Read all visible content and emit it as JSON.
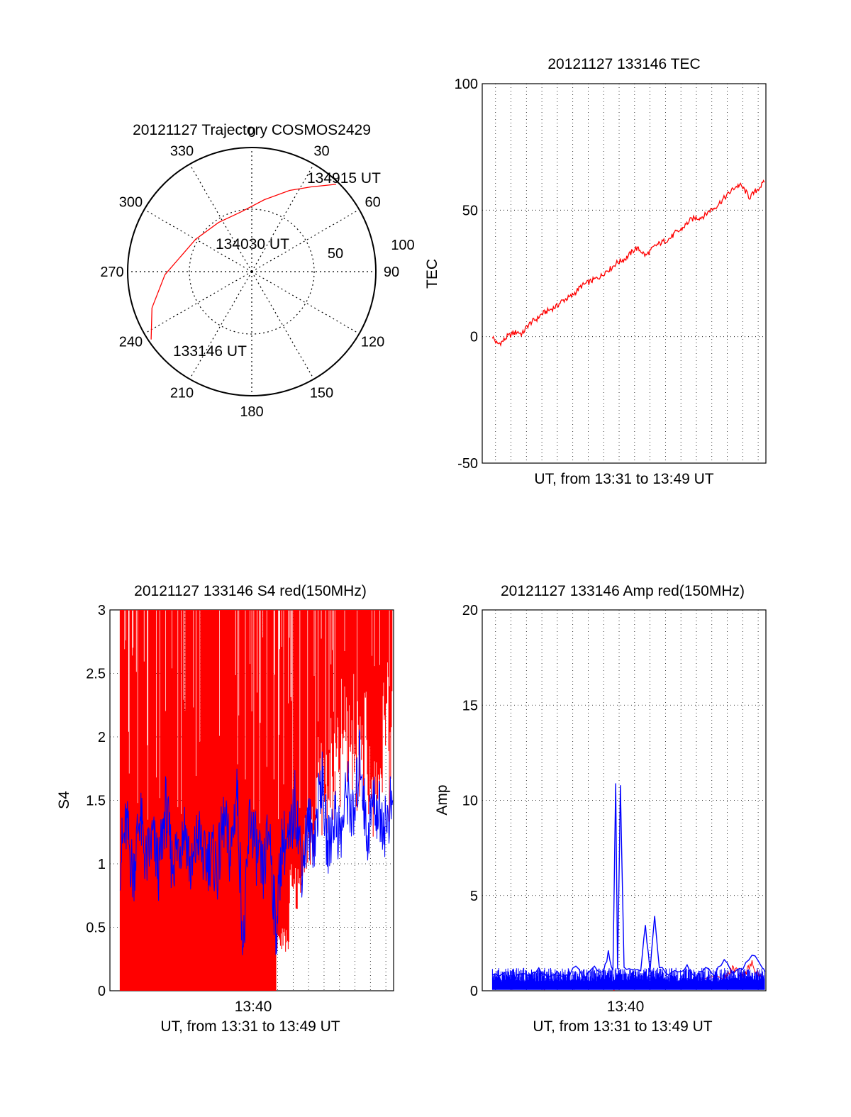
{
  "colors": {
    "red": "#ff0000",
    "blue": "#0000ff",
    "axis": "#000000",
    "grid": "#000000"
  },
  "chart_data": [
    {
      "type": "polar",
      "title": "20121127 Trajectory COSMOS2429",
      "angle_labels": [
        "0",
        "30",
        "60",
        "90",
        "120",
        "150",
        "180",
        "210",
        "240",
        "270",
        "300",
        "330"
      ],
      "radius_labels": [
        "50",
        "100"
      ],
      "trajectory": {
        "color": "red",
        "points": [
          {
            "time": "133146 UT",
            "az": 236,
            "el": 2
          },
          {
            "time": "",
            "az": 250,
            "el": 13
          },
          {
            "time": "",
            "az": 268,
            "el": 27
          },
          {
            "time": "134030 UT",
            "az": 300,
            "el": 43
          },
          {
            "time": "",
            "az": 326,
            "el": 47
          },
          {
            "time": "",
            "az": 350,
            "el": 46
          },
          {
            "time": "",
            "az": 10,
            "el": 37
          },
          {
            "time": "",
            "az": 25,
            "el": 25
          },
          {
            "time": "",
            "az": 35,
            "el": 15
          },
          {
            "time": "134915 UT",
            "az": 44,
            "el": 2
          }
        ]
      }
    },
    {
      "type": "line",
      "title": "20121127 133146 TEC",
      "xlabel": "UT, from 13:31 to 13:49 UT",
      "ylabel": "TEC",
      "xlim": [
        13.519,
        13.825
      ],
      "ylim": [
        -50,
        100
      ],
      "yticks": [
        "-50",
        "0",
        "50",
        "100"
      ],
      "grid": true,
      "series": [
        {
          "color": "red",
          "x": [
            13.53,
            13.5353,
            13.5407,
            13.546,
            13.5513,
            13.5567,
            13.562,
            13.5673,
            13.5727,
            13.578,
            13.5833,
            13.5887,
            13.594,
            13.5993,
            13.6047,
            13.61,
            13.6153,
            13.6207,
            13.626,
            13.6313,
            13.6367,
            13.642,
            13.6473,
            13.6527,
            13.658,
            13.6633,
            13.6687,
            13.674,
            13.6793,
            13.6847,
            13.69,
            13.6953,
            13.7007,
            13.706,
            13.7113,
            13.7167,
            13.722,
            13.7273,
            13.7327,
            13.738,
            13.7433,
            13.7487,
            13.754,
            13.7593,
            13.7647,
            13.77,
            13.7753,
            13.7807,
            13.786,
            13.7913,
            13.7967,
            13.802,
            13.8073,
            13.8127,
            13.818,
            13.8233
          ],
          "y": [
            0,
            -3,
            -2,
            0,
            1,
            2,
            1,
            4,
            6,
            7,
            9,
            10,
            11,
            12,
            14,
            15,
            16,
            18,
            20,
            21,
            22,
            23,
            24,
            26,
            27,
            29,
            30,
            31,
            33,
            35,
            34,
            32,
            34,
            36,
            37,
            38,
            39,
            41,
            42,
            44,
            46,
            47,
            47,
            48,
            50,
            51,
            53,
            55,
            57,
            59,
            60,
            58,
            55,
            57,
            59,
            61
          ]
        }
      ]
    },
    {
      "type": "line",
      "title": "20121127 133146 S4 red(150MHz)",
      "xlabel": "UT, from 13:31 to 13:49 UT",
      "ylabel": "S4",
      "xlim": [
        13.519,
        13.825
      ],
      "ylim": [
        0,
        3
      ],
      "yticks": [
        "0",
        "0.5",
        "1",
        "1.5",
        "2",
        "2.5",
        "3"
      ],
      "xtick_label": "13:40",
      "grid": true,
      "series": [
        {
          "color": "red",
          "x": [
            13.53,
            13.537,
            13.544,
            13.551,
            13.558,
            13.565,
            13.572,
            13.579,
            13.586,
            13.593,
            13.6,
            13.607,
            13.614,
            13.621,
            13.628,
            13.635,
            13.642,
            13.649,
            13.656,
            13.663,
            13.67,
            13.677,
            13.684,
            13.691,
            13.698,
            13.705,
            13.712,
            13.719,
            13.726,
            13.733,
            13.74,
            13.747,
            13.754,
            13.761,
            13.768,
            13.775,
            13.782,
            13.789,
            13.796,
            13.803,
            13.81,
            13.817,
            13.824
          ],
          "y": [
            3,
            0,
            3,
            0,
            3,
            0,
            3,
            0,
            3,
            0,
            3,
            0,
            3,
            0,
            3,
            0,
            3,
            0,
            3,
            0,
            3,
            0,
            3,
            0,
            3,
            0.5,
            3,
            1,
            3,
            1.5,
            3,
            2,
            3,
            2.2,
            3,
            2.5,
            3,
            2.4,
            3,
            2,
            3,
            2.6,
            3
          ]
        },
        {
          "color": "blue",
          "x": [
            13.53,
            13.537,
            13.544,
            13.551,
            13.558,
            13.565,
            13.572,
            13.579,
            13.586,
            13.593,
            13.6,
            13.607,
            13.614,
            13.621,
            13.628,
            13.635,
            13.642,
            13.649,
            13.656,
            13.663,
            13.67,
            13.677,
            13.684,
            13.691,
            13.698,
            13.705,
            13.712,
            13.719,
            13.726,
            13.733,
            13.74,
            13.747,
            13.754,
            13.761,
            13.768,
            13.775,
            13.782,
            13.789,
            13.796,
            13.803,
            13.81,
            13.817,
            13.824
          ],
          "y": [
            1.05,
            1.3,
            0.9,
            1.4,
            1.0,
            1.2,
            0.95,
            1.45,
            1.0,
            1.15,
            1.3,
            0.9,
            1.25,
            1.0,
            1.1,
            0.95,
            1.35,
            1.05,
            1.6,
            0.3,
            1.4,
            1.1,
            0.9,
            1.3,
            0.45,
            1.2,
            1.1,
            1.5,
            1.0,
            1.3,
            1.2,
            1.7,
            1.1,
            1.4,
            1.2,
            1.6,
            1.3,
            1.9,
            1.2,
            1.5,
            1.4,
            1.3,
            1.5
          ]
        }
      ]
    },
    {
      "type": "line",
      "title": "20121127 133146 Amp red(150MHz)",
      "xlabel": "UT, from 13:31 to 13:49 UT",
      "ylabel": "Amp",
      "xlim": [
        13.519,
        13.825
      ],
      "ylim": [
        0,
        20
      ],
      "yticks": [
        "0",
        "5",
        "10",
        "15",
        "20"
      ],
      "xtick_label": "13:40",
      "grid": true,
      "series": [
        {
          "color": "red",
          "x": [
            13.53,
            13.6,
            13.66,
            13.661,
            13.662,
            13.7,
            13.78,
            13.79,
            13.8,
            13.81,
            13.82
          ],
          "y": [
            0.3,
            0.3,
            0.3,
            0.05,
            0.3,
            0.3,
            0.6,
            1.2,
            0.8,
            1.4,
            0.7
          ]
        },
        {
          "color": "blue",
          "x": [
            13.53,
            13.54,
            13.55,
            13.56,
            13.57,
            13.58,
            13.59,
            13.6,
            13.61,
            13.62,
            13.63,
            13.64,
            13.65,
            13.655,
            13.66,
            13.663,
            13.665,
            13.668,
            13.672,
            13.68,
            13.69,
            13.695,
            13.7,
            13.705,
            13.71,
            13.72,
            13.73,
            13.74,
            13.75,
            13.76,
            13.77,
            13.78,
            13.79,
            13.8,
            13.81,
            13.82,
            13.824
          ],
          "y": [
            0.7,
            1.0,
            0.6,
            0.9,
            0.7,
            1.1,
            0.6,
            0.9,
            0.8,
            1.2,
            0.7,
            1.3,
            0.9,
            2.0,
            1.0,
            10.8,
            1.0,
            10.7,
            1.1,
            1.2,
            1.0,
            3.5,
            1.0,
            4.0,
            1.2,
            0.9,
            1.0,
            1.3,
            0.8,
            1.1,
            0.9,
            1.5,
            1.0,
            1.1,
            2.0,
            1.2,
            1.0
          ]
        }
      ]
    }
  ]
}
